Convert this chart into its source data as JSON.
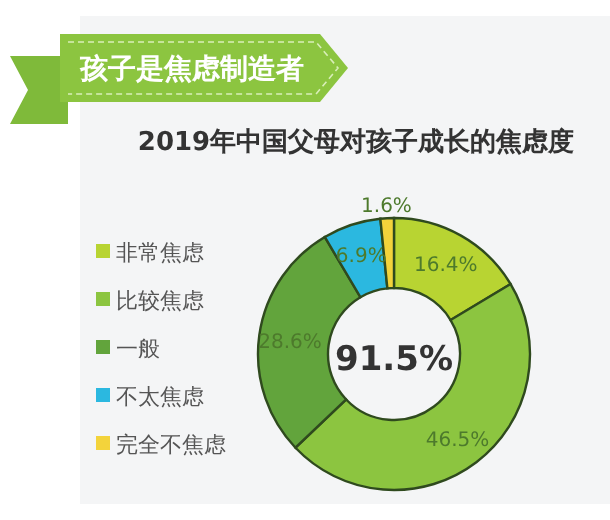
{
  "chart_data": {
    "type": "donut",
    "title": "孩子是焦虑制造者",
    "subtitle": "2019年中国父母对孩子成长的焦虑度",
    "categories": [
      "非常焦虑",
      "比较焦虑",
      "一般",
      "不太焦虑",
      "完全不焦虑"
    ],
    "values": [
      16.4,
      46.5,
      28.6,
      6.9,
      1.6
    ],
    "value_labels": [
      "16.4%",
      "46.5%",
      "28.6%",
      "6.9%",
      "1.6%"
    ],
    "colors": [
      "#b8d432",
      "#8cc540",
      "#62a43c",
      "#2bb8e0",
      "#f3d33b"
    ],
    "annotations": [
      "91.5%"
    ],
    "legend": "left"
  }
}
